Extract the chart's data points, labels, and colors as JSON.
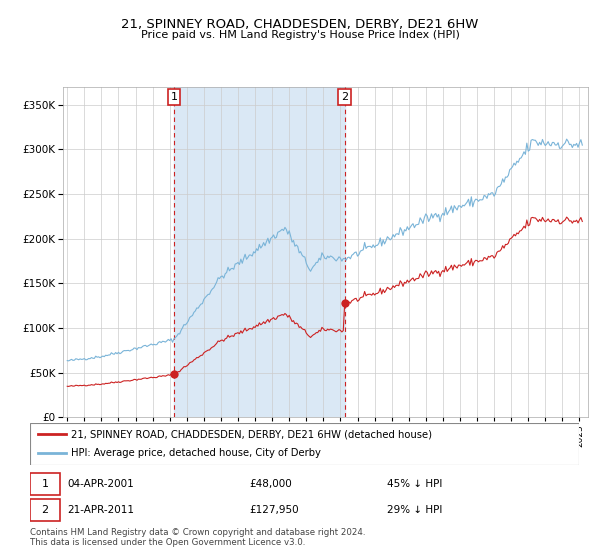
{
  "title": "21, SPINNEY ROAD, CHADDESDEN, DERBY, DE21 6HW",
  "subtitle": "Price paid vs. HM Land Registry's House Price Index (HPI)",
  "purchase1_price": 48000,
  "purchase1_label": "04-APR-2001",
  "purchase1_pct": "45% ↓ HPI",
  "purchase1_year": 2001,
  "purchase1_month": 4,
  "purchase2_price": 127950,
  "purchase2_label": "21-APR-2011",
  "purchase2_pct": "29% ↓ HPI",
  "purchase2_year": 2011,
  "purchase2_month": 4,
  "legend_line1": "21, SPINNEY ROAD, CHADDESDEN, DERBY, DE21 6HW (detached house)",
  "legend_line2": "HPI: Average price, detached house, City of Derby",
  "footer": "Contains HM Land Registry data © Crown copyright and database right 2024.\nThis data is licensed under the Open Government Licence v3.0.",
  "hpi_color": "#7ab4d8",
  "price_color": "#cc2222",
  "vline_color": "#cc2222",
  "shade_color": "#dae8f5",
  "ylim": [
    0,
    370000
  ],
  "yticks": [
    0,
    50000,
    100000,
    150000,
    200000,
    250000,
    300000,
    350000
  ],
  "xmin": 1994.75,
  "xmax": 2025.5
}
